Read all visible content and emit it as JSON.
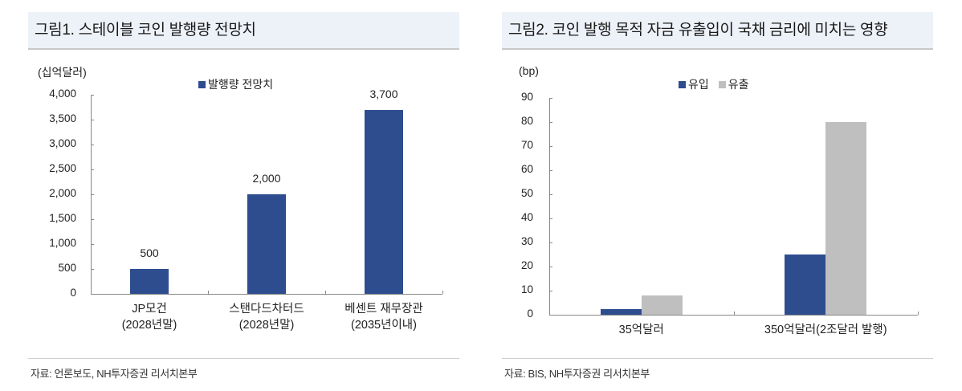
{
  "figure1": {
    "title": "그림1. 스테이블 코인 발행량 전망치",
    "unit": "(십억달러)",
    "legend": [
      {
        "label": "발행량 전망치",
        "color": "#2e4d8f"
      }
    ],
    "source": "자료: 언론보도, NH투자증권 리서치본부"
  },
  "figure2": {
    "title": "그림2. 코인 발행 목적 자금 유출입이 국채 금리에 미치는 영향",
    "unit": "(bp)",
    "legend": [
      {
        "label": "유입",
        "color": "#2e4d8f"
      },
      {
        "label": "유출",
        "color": "#bfbfbf"
      }
    ],
    "source": "자료: BIS, NH투자증권 리서치본부"
  },
  "chart_data": [
    {
      "type": "bar",
      "title": "그림1. 스테이블 코인 발행량 전망치",
      "ylabel": "(십억달러)",
      "xlabel": "",
      "categories": [
        "JP모건\n(2028년말)",
        "스탠다드차터드\n(2028년말)",
        "베센트 재무장관\n(2035년이내)"
      ],
      "category_lines": [
        [
          "JP모건",
          "(2028년말)"
        ],
        [
          "스탠다드차터드",
          "(2028년말)"
        ],
        [
          "베센트 재무장관",
          "(2035년이내)"
        ]
      ],
      "series": [
        {
          "name": "발행량 전망치",
          "color": "#2e4d8f",
          "values": [
            500,
            2000,
            3700
          ]
        }
      ],
      "data_labels": [
        "500",
        "2,000",
        "3,700"
      ],
      "ylim": [
        0,
        4000
      ],
      "yticks": [
        0,
        500,
        1000,
        1500,
        2000,
        2500,
        3000,
        3500,
        4000
      ],
      "ytick_labels": [
        "0",
        "500",
        "1,000",
        "1,500",
        "2,000",
        "2,500",
        "3,000",
        "3,500",
        "4,000"
      ],
      "grid": false,
      "legend_position": "top"
    },
    {
      "type": "bar",
      "title": "그림2. 코인 발행 목적 자금 유출입이 국채 금리에 미치는 영향",
      "ylabel": "(bp)",
      "xlabel": "",
      "categories": [
        "35억달러",
        "350억달러(2조달러 발행)"
      ],
      "series": [
        {
          "name": "유입",
          "color": "#2e4d8f",
          "values": [
            2.5,
            25
          ]
        },
        {
          "name": "유출",
          "color": "#bfbfbf",
          "values": [
            8,
            80
          ]
        }
      ],
      "ylim": [
        0,
        90
      ],
      "yticks": [
        0,
        10,
        20,
        30,
        40,
        50,
        60,
        70,
        80,
        90
      ],
      "ytick_labels": [
        "0",
        "10",
        "20",
        "30",
        "40",
        "50",
        "60",
        "70",
        "80",
        "90"
      ],
      "grid": false,
      "legend_position": "top"
    }
  ]
}
